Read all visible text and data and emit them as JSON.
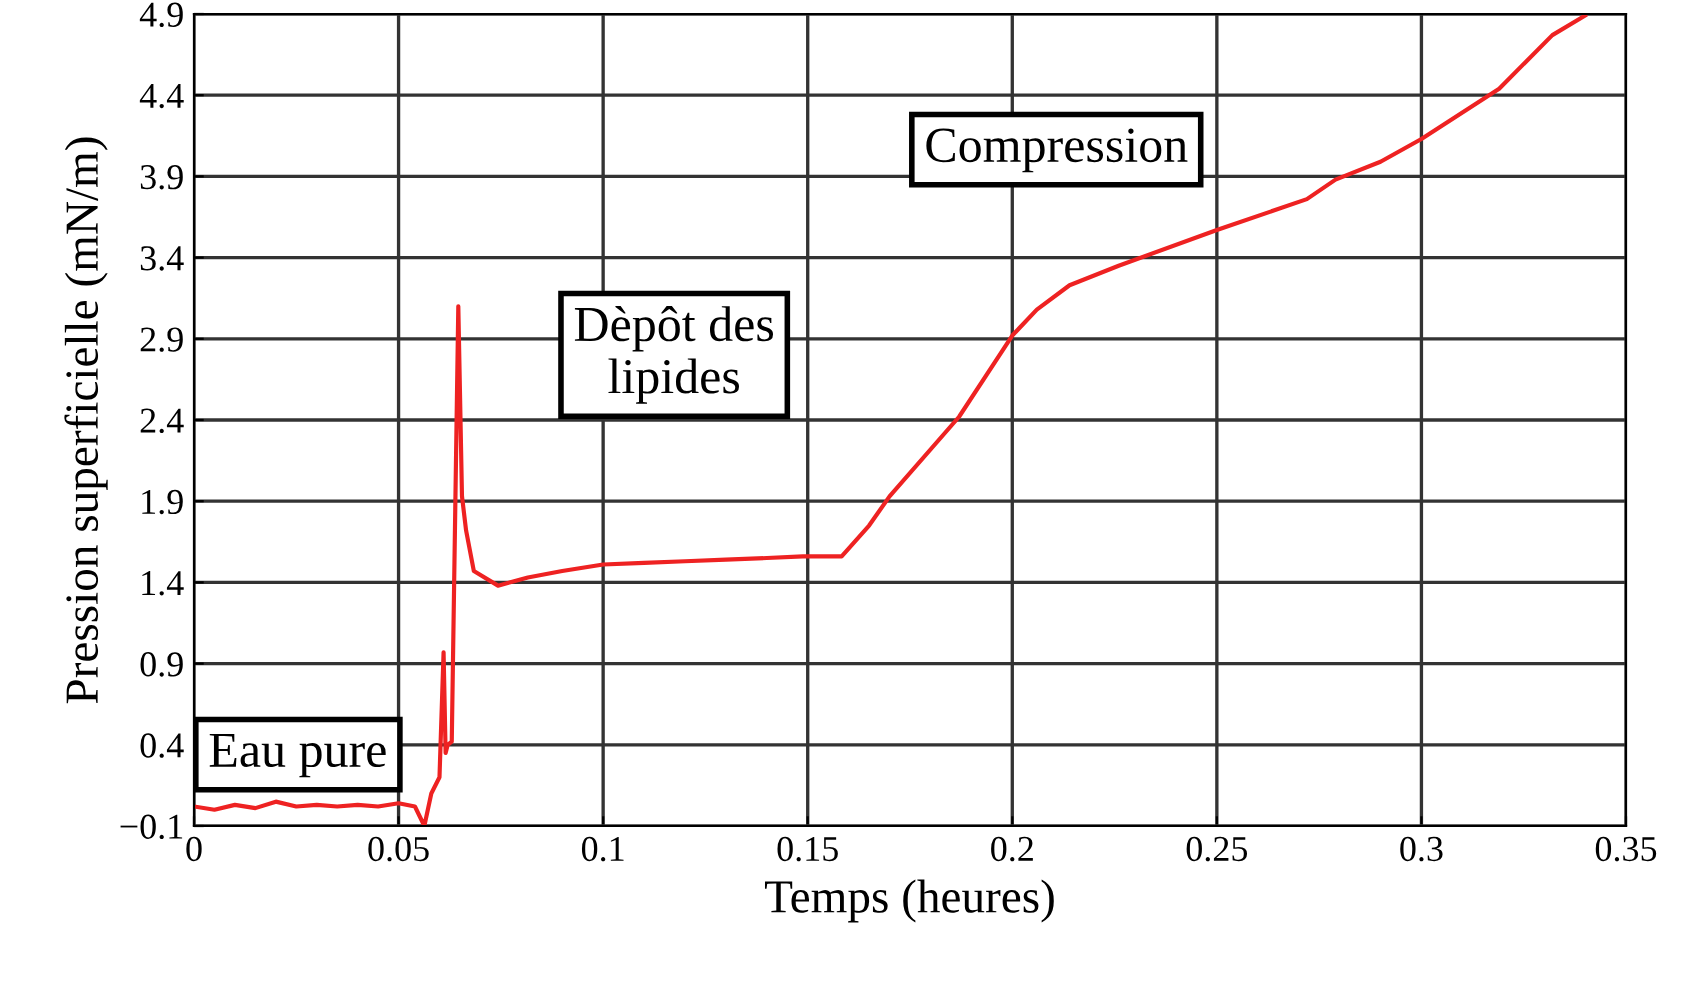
{
  "chart_data": {
    "type": "line",
    "xlabel": "Temps (heures)",
    "ylabel": "Pression superficielle (mN/m)",
    "annotations": [
      "Eau pure",
      "Dèpôt des\nlipides",
      "Compression"
    ],
    "series": [
      {
        "color": "#ee2222",
        "x": [
          0,
          0.005,
          0.01,
          0.015,
          0.02,
          0.025,
          0.03,
          0.035,
          0.04,
          0.045,
          0.05,
          0.054,
          0.0563,
          0.058,
          0.06,
          0.061,
          0.0615,
          0.062,
          0.063,
          0.0646,
          0.0655,
          0.0665,
          0.0684,
          0.0743,
          0.0816,
          0.09,
          0.1,
          0.11,
          0.12,
          0.13,
          0.14,
          0.1488,
          0.1583,
          0.165,
          0.17,
          0.187,
          0.2,
          0.206,
          0.214,
          0.226,
          0.25,
          0.272,
          0.279,
          0.29,
          0.3,
          0.319,
          0.332,
          0.34
        ],
        "values": [
          0.02,
          0.0,
          0.03,
          0.01,
          0.05,
          0.02,
          0.03,
          0.02,
          0.03,
          0.02,
          0.04,
          0.02,
          -0.1,
          0.1,
          0.2,
          0.97,
          0.35,
          0.4,
          0.42,
          3.1,
          1.93,
          1.72,
          1.47,
          1.38,
          1.43,
          1.47,
          1.51,
          1.52,
          1.53,
          1.54,
          1.55,
          1.56,
          1.56,
          1.75,
          1.93,
          2.42,
          2.92,
          3.08,
          3.23,
          3.35,
          3.57,
          3.76,
          3.88,
          3.99,
          4.13,
          4.44,
          4.77,
          4.89
        ]
      }
    ],
    "xlim": [
      0,
      0.35
    ],
    "ylim": [
      -0.1,
      4.9
    ],
    "xticks": [
      0,
      0.05,
      0.1,
      0.15,
      0.2,
      0.25,
      0.3,
      0.35
    ],
    "yticks": [
      {
        "value": -0.1,
        "label": "−0.1"
      },
      0.4,
      0.9,
      1.4,
      1.9,
      2.4,
      2.9,
      3.4,
      3.9,
      4.4,
      4.9
    ],
    "grid": true,
    "marker": "none",
    "line_style": "solid",
    "legend": false
  }
}
